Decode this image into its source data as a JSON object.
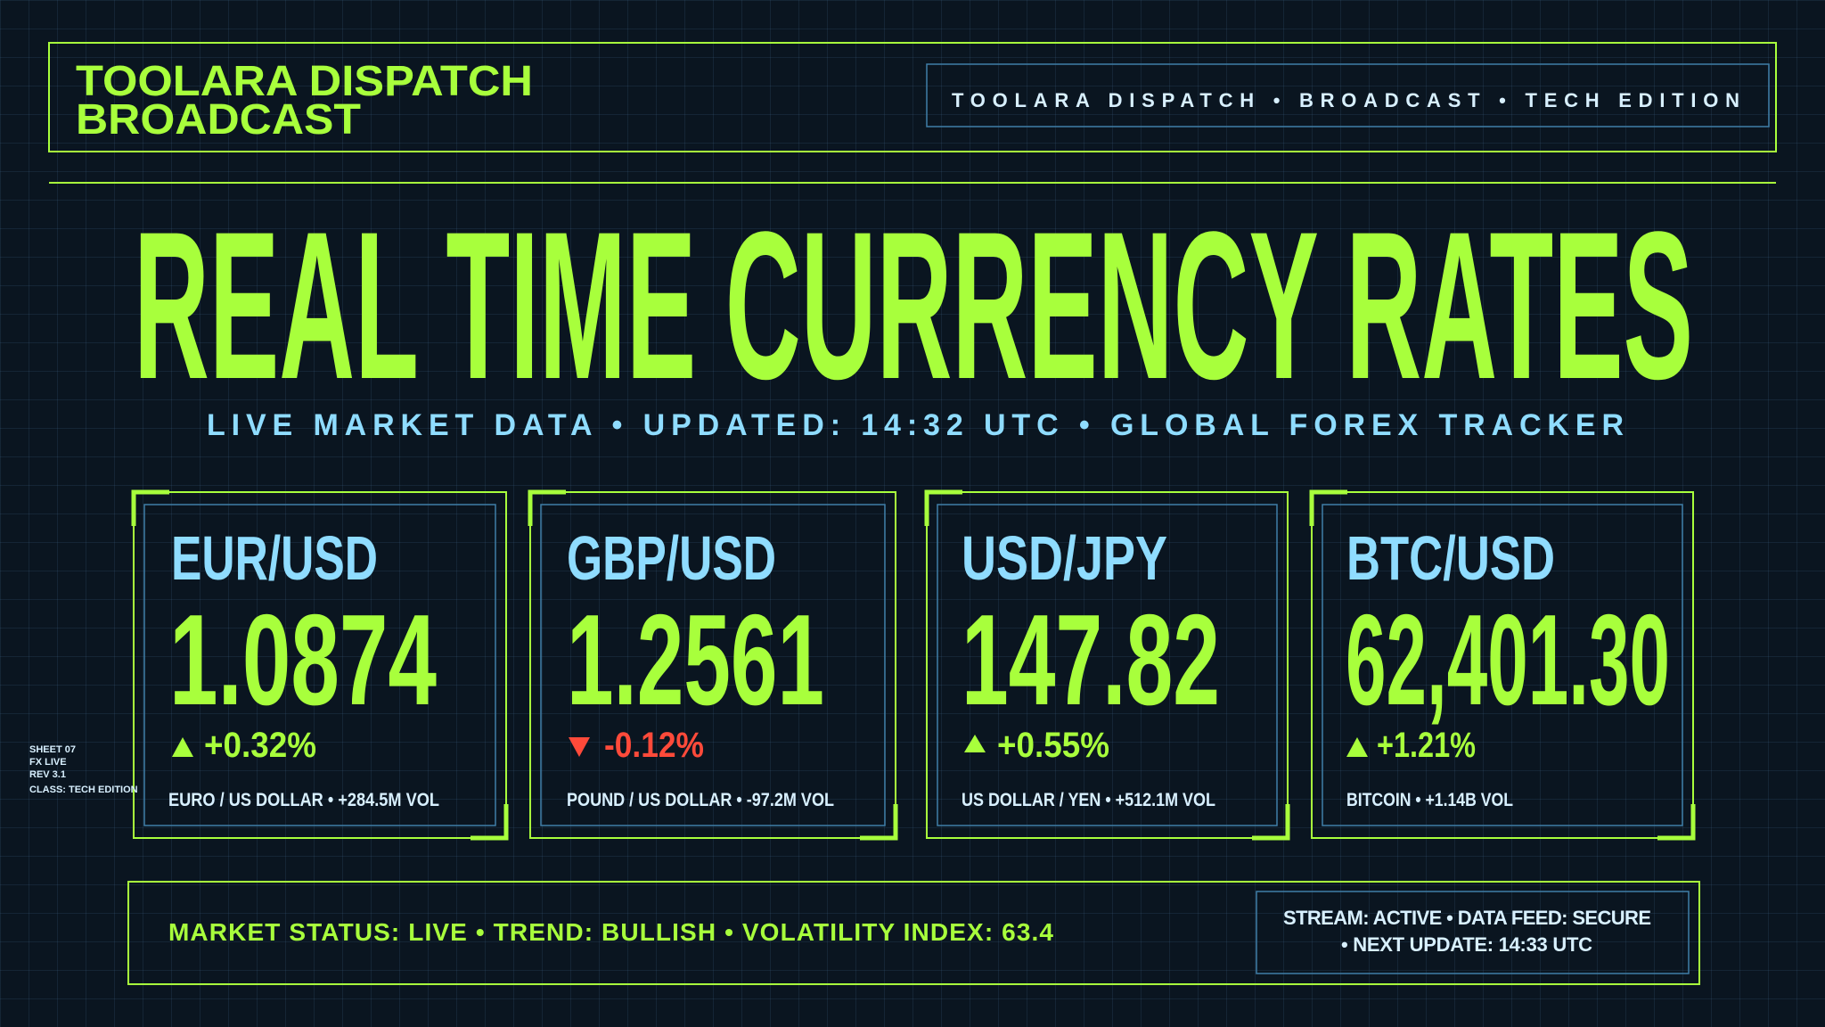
{
  "header": {
    "brand": [
      "TOOLARA DISPATCH",
      "BROADCAST"
    ],
    "tagline": "TOOLARA DISPATCH • BROADCAST • TECH EDITION"
  },
  "title": "REAL TIME CURRENCY RATES",
  "subtitle": "LIVE MARKET DATA • UPDATED: 14:32 UTC • GLOBAL FOREX TRACKER",
  "cards": [
    {
      "pair": "EUR/USD",
      "rate": "1.0874",
      "change": "+0.32%",
      "description": "EURO / US DOLLAR • +284.5M VOL"
    },
    {
      "pair": "GBP/USD",
      "rate": "1.2561",
      "change": "-0.12%",
      "description": "POUND / US DOLLAR • -97.2M VOL"
    },
    {
      "pair": "USD/JPY",
      "rate": "147.82",
      "change": "+0.55%",
      "description": "US DOLLAR / YEN • +512.1M VOL"
    },
    {
      "pair": "BTC/USD",
      "rate": "62,401.30",
      "change": "+1.21%",
      "description": "BITCOIN • +1.14B VOL"
    }
  ],
  "sheet_note": [
    "SHEET 07",
    "FX LIVE",
    "REV 3.1",
    "CLASS: TECH EDITION"
  ],
  "footer": {
    "status": "MARKET STATUS: LIVE • TREND: BULLISH • VOLATILITY INDEX: 63.4",
    "stream": [
      "STREAM: ACTIVE • DATA FEED: SECURE",
      "• NEXT UPDATE: 14:33 UTC"
    ]
  }
}
